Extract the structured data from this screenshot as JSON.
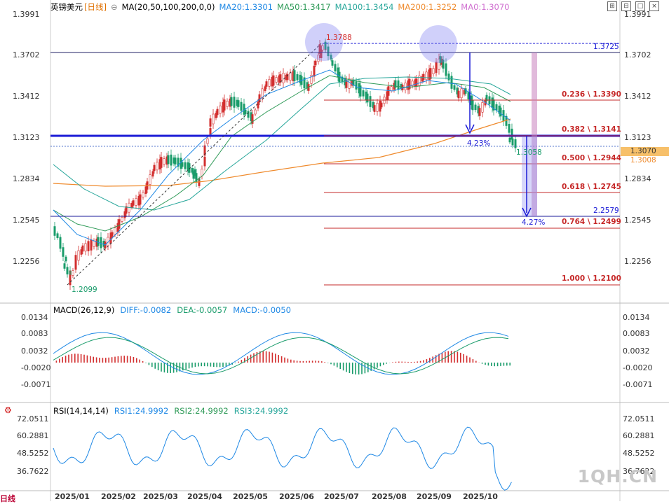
{
  "header": {
    "symbol": "英镑美元",
    "period": "[日线]",
    "ma_label": "MA(20,50,100,200,0,0)",
    "ma20": "MA20:1.3301",
    "ma50": "MA50:1.3417",
    "ma100": "MA100:1.3454",
    "ma200": "MA200:1.3252",
    "ma0": "MA0:1.3070"
  },
  "price_axis": [
    "1.3991",
    "1.3702",
    "1.3412",
    "1.3123",
    "1.2834",
    "1.2545",
    "1.2256"
  ],
  "macd_header": {
    "label": "MACD(26,12,9)",
    "diff": "DIFF:-0.0082",
    "dea": "DEA:-0.0057",
    "macd": "MACD:-0.0050"
  },
  "macd_axis": [
    "0.0134",
    "0.0083",
    "0.0032",
    "-0.0020",
    "-0.0071"
  ],
  "rsi_header": {
    "label": "RSI(14,14,14)",
    "rsi1": "RSI1:24.9992",
    "rsi2": "RSI2:24.9992",
    "rsi3": "RSI3:24.9992"
  },
  "rsi_axis": [
    "72.0511",
    "60.2881",
    "48.5252",
    "36.7622"
  ],
  "x_axis": [
    "2025/01",
    "2025/02",
    "2025/03",
    "2025/04",
    "2025/05",
    "2025/06",
    "2025/07",
    "2025/08",
    "2025/09",
    "2025/10"
  ],
  "annotations": {
    "high": "1.3788",
    "low": "1.2099",
    "resistance": "1.3725",
    "last_low": "1.3058",
    "current_price": "1.3070",
    "current_price2": "1.3008",
    "target": "2.2579",
    "pct1": "4.23%",
    "pct2": "4.27%",
    "fib": [
      "0.236 \\ 1.3390",
      "0.382 \\ 1.3141",
      "0.500 \\ 1.2944",
      "0.618 \\ 1.2745",
      "0.764 \\ 1.2499",
      "1.000 \\ 1.2100"
    ]
  },
  "watermark": "1QH.CN",
  "tab_label": "日线",
  "colors": {
    "up": "#d32f2f",
    "down": "#1a9c6b",
    "ma20": "#1e88e5",
    "ma50": "#2e9a57",
    "ma100": "#26a69a",
    "ma200": "#ef8a2c",
    "fib": "#c62828",
    "support": "#1a1ad6"
  }
}
